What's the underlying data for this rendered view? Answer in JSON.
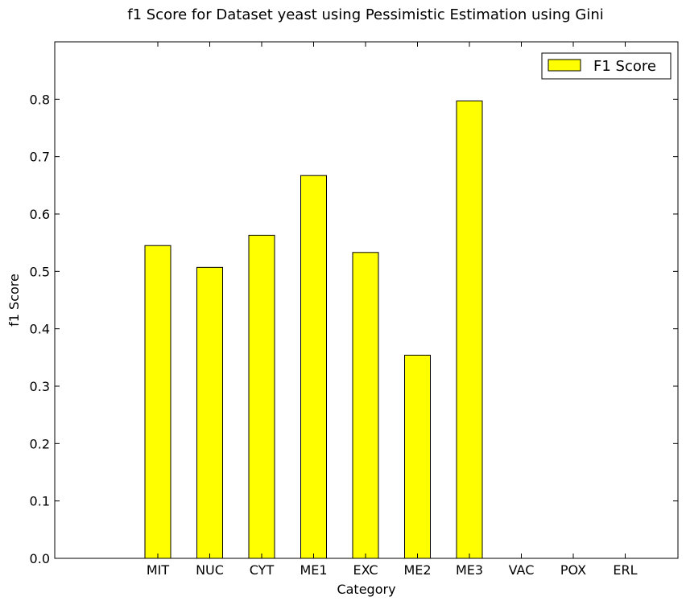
{
  "chart_data": {
    "type": "bar",
    "title": "f1 Score for Dataset yeast using Pessimistic Estimation using Gini",
    "xlabel": "Category",
    "ylabel": "f1 Score",
    "categories": [
      "MIT",
      "NUC",
      "CYT",
      "ME1",
      "EXC",
      "ME2",
      "ME3",
      "VAC",
      "POX",
      "ERL"
    ],
    "series": [
      {
        "name": "F1 Score",
        "values": [
          0.545,
          0.507,
          0.563,
          0.667,
          0.533,
          0.354,
          0.797,
          0.0,
          0.0,
          0.0
        ]
      }
    ],
    "ylim": [
      0,
      0.9
    ],
    "yticks": [
      "0.0",
      "0.1",
      "0.2",
      "0.3",
      "0.4",
      "0.5",
      "0.6",
      "0.7",
      "0.8"
    ],
    "grid": false,
    "legend": "top-right",
    "bar_color": "#ffff00",
    "edge_color": "#000000"
  }
}
